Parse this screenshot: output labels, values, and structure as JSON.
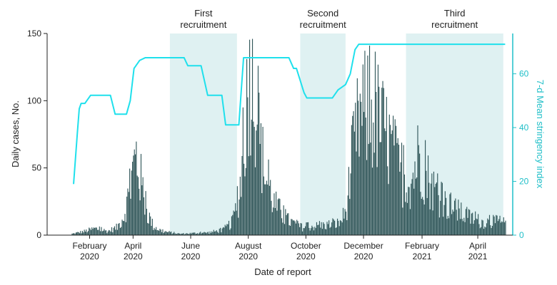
{
  "chart_data": {
    "type": "bar",
    "xlabel": "Date of report",
    "ylabel": "Daily cases, No.",
    "y2label": "7-d Mean stringency index",
    "ylim": [
      0,
      150
    ],
    "y2lim": [
      0,
      75
    ],
    "y_ticks": [
      0,
      50,
      100,
      150
    ],
    "y2_ticks": [
      0,
      20,
      40,
      60
    ],
    "x_range": [
      "2020-01-01",
      "2021-05-08"
    ],
    "x_ticks": [
      {
        "date": "2020-02-15",
        "line1": "February",
        "line2": "2020"
      },
      {
        "date": "2020-04-01",
        "line1": "April",
        "line2": "2020"
      },
      {
        "date": "2020-06-01",
        "line1": "June",
        "line2": "2020"
      },
      {
        "date": "2020-08-01",
        "line1": "August",
        "line2": "2020"
      },
      {
        "date": "2020-10-01",
        "line1": "October",
        "line2": "2020"
      },
      {
        "date": "2020-12-01",
        "line1": "December",
        "line2": "2020"
      },
      {
        "date": "2021-02-01",
        "line1": "February",
        "line2": "2021"
      },
      {
        "date": "2021-04-01",
        "line1": "April",
        "line2": "2021"
      }
    ],
    "recruitment_periods": [
      {
        "line1": "First",
        "line2": "recruitment",
        "start": "2020-05-10",
        "end": "2020-07-20"
      },
      {
        "line1": "Second",
        "line2": "recruitment",
        "start": "2020-09-25",
        "end": "2020-11-12"
      },
      {
        "line1": "Third",
        "line2": "recruitment",
        "start": "2021-01-15",
        "end": "2021-04-28"
      }
    ],
    "series": [
      {
        "type": "bar",
        "axis": "left",
        "color": "#2f5558",
        "start_date": "2020-01-27",
        "end_date": "2021-04-30",
        "anchors": [
          [
            "2020-01-27",
            1
          ],
          [
            "2020-02-10",
            3
          ],
          [
            "2020-02-20",
            5
          ],
          [
            "2020-03-05",
            3
          ],
          [
            "2020-03-15",
            6
          ],
          [
            "2020-03-22",
            15
          ],
          [
            "2020-03-28",
            33
          ],
          [
            "2020-04-01",
            52
          ],
          [
            "2020-04-04",
            60
          ],
          [
            "2020-04-08",
            45
          ],
          [
            "2020-04-15",
            18
          ],
          [
            "2020-04-22",
            7
          ],
          [
            "2020-05-01",
            3
          ],
          [
            "2020-05-20",
            1
          ],
          [
            "2020-06-20",
            2
          ],
          [
            "2020-07-05",
            4
          ],
          [
            "2020-07-15",
            10
          ],
          [
            "2020-07-22",
            30
          ],
          [
            "2020-07-28",
            80
          ],
          [
            "2020-08-02",
            125
          ],
          [
            "2020-08-05",
            133
          ],
          [
            "2020-08-08",
            108
          ],
          [
            "2020-08-13",
            68
          ],
          [
            "2020-08-20",
            42
          ],
          [
            "2020-08-28",
            24
          ],
          [
            "2020-09-10",
            12
          ],
          [
            "2020-09-25",
            6
          ],
          [
            "2020-10-15",
            7
          ],
          [
            "2020-11-05",
            9
          ],
          [
            "2020-11-12",
            18
          ],
          [
            "2020-11-18",
            55
          ],
          [
            "2020-11-26",
            88
          ],
          [
            "2020-12-05",
            95
          ],
          [
            "2020-12-15",
            90
          ],
          [
            "2020-12-28",
            70
          ],
          [
            "2021-01-08",
            47
          ],
          [
            "2021-01-20",
            40
          ],
          [
            "2021-01-28",
            62
          ],
          [
            "2021-02-05",
            45
          ],
          [
            "2021-02-20",
            27
          ],
          [
            "2021-03-05",
            20
          ],
          [
            "2021-03-20",
            14
          ],
          [
            "2021-04-05",
            10
          ],
          [
            "2021-04-20",
            10
          ],
          [
            "2021-04-30",
            9
          ]
        ]
      },
      {
        "type": "line",
        "axis": "right",
        "color": "#1fe0ec",
        "points": [
          [
            "2020-01-29",
            19
          ],
          [
            "2020-02-02",
            38
          ],
          [
            "2020-02-04",
            47
          ],
          [
            "2020-02-06",
            49
          ],
          [
            "2020-02-10",
            49
          ],
          [
            "2020-02-16",
            52
          ],
          [
            "2020-02-28",
            52
          ],
          [
            "2020-03-08",
            52
          ],
          [
            "2020-03-13",
            45
          ],
          [
            "2020-03-25",
            45
          ],
          [
            "2020-03-29",
            50
          ],
          [
            "2020-04-02",
            62
          ],
          [
            "2020-04-08",
            65
          ],
          [
            "2020-04-14",
            66
          ],
          [
            "2020-05-10",
            66
          ],
          [
            "2020-05-25",
            66
          ],
          [
            "2020-05-29",
            63
          ],
          [
            "2020-06-12",
            63
          ],
          [
            "2020-06-19",
            52
          ],
          [
            "2020-06-29",
            52
          ],
          [
            "2020-07-04",
            52
          ],
          [
            "2020-07-08",
            41
          ],
          [
            "2020-07-22",
            41
          ],
          [
            "2020-07-27",
            66
          ],
          [
            "2020-09-13",
            66
          ],
          [
            "2020-09-18",
            62
          ],
          [
            "2020-09-21",
            62
          ],
          [
            "2020-09-29",
            53
          ],
          [
            "2020-10-02",
            51
          ],
          [
            "2020-10-29",
            51
          ],
          [
            "2020-11-04",
            54
          ],
          [
            "2020-11-12",
            56
          ],
          [
            "2020-11-17",
            60
          ],
          [
            "2020-11-22",
            69
          ],
          [
            "2020-11-26",
            71
          ],
          [
            "2021-04-30",
            71
          ]
        ]
      }
    ]
  }
}
